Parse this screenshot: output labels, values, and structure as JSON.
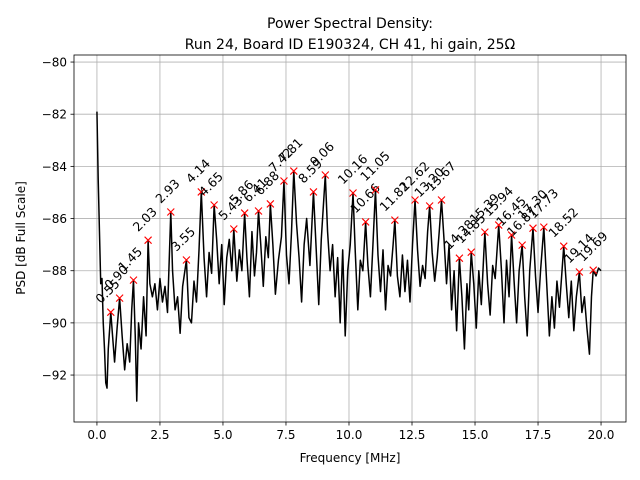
{
  "chart_data": {
    "type": "line",
    "title": [
      "Power Spectral Density:",
      "Run 24, Board ID E190324, CH 41, hi gain, 25Ω"
    ],
    "xlabel": "Frequency [MHz]",
    "ylabel": "PSD [dB Full Scale]",
    "color": "#000000",
    "grid": true,
    "xlim": [
      -0.91,
      20.99
    ],
    "ylim": [
      -93.8,
      -79.73
    ],
    "xticks": [
      {
        "value": 0,
        "label": "0.0"
      },
      2.5,
      {
        "value": 5,
        "label": "5.0"
      },
      7.5,
      {
        "value": 10,
        "label": "10.0"
      },
      12.5,
      {
        "value": 15,
        "label": "15.0"
      },
      17.5,
      {
        "value": 20,
        "label": "20.0"
      }
    ],
    "yticks": [
      {
        "value": -80,
        "label": "−80"
      },
      {
        "value": -82,
        "label": "−82"
      },
      {
        "value": -84,
        "label": "−84"
      },
      {
        "value": -86,
        "label": "−86"
      },
      {
        "value": -88,
        "label": "−88"
      },
      {
        "value": -90,
        "label": "−90"
      },
      {
        "value": -92,
        "label": "−92"
      }
    ],
    "x": [
      0.0,
      0.05,
      0.1,
      0.15,
      0.2,
      0.25,
      0.3,
      0.35,
      0.4,
      0.45,
      0.55,
      0.62,
      0.7,
      0.8,
      0.9,
      1.0,
      1.1,
      1.2,
      1.3,
      1.38,
      1.45,
      1.52,
      1.58,
      1.65,
      1.75,
      1.85,
      1.95,
      2.03,
      2.1,
      2.2,
      2.3,
      2.4,
      2.5,
      2.6,
      2.7,
      2.8,
      2.93,
      3.0,
      3.1,
      3.2,
      3.3,
      3.4,
      3.55,
      3.65,
      3.75,
      3.85,
      3.95,
      4.05,
      4.14,
      4.25,
      4.35,
      4.45,
      4.55,
      4.65,
      4.75,
      4.85,
      4.95,
      5.05,
      5.15,
      5.25,
      5.35,
      5.43,
      5.55,
      5.65,
      5.75,
      5.86,
      5.95,
      6.05,
      6.15,
      6.25,
      6.33,
      6.41,
      6.5,
      6.6,
      6.7,
      6.8,
      6.88,
      6.98,
      7.08,
      7.2,
      7.32,
      7.42,
      7.52,
      7.62,
      7.72,
      7.81,
      7.92,
      8.02,
      8.12,
      8.22,
      8.32,
      8.45,
      8.59,
      8.7,
      8.8,
      8.9,
      9.06,
      9.15,
      9.25,
      9.35,
      9.45,
      9.55,
      9.65,
      9.75,
      9.85,
      9.95,
      10.05,
      10.16,
      10.25,
      10.35,
      10.45,
      10.55,
      10.66,
      10.75,
      10.85,
      10.95,
      11.05,
      11.15,
      11.25,
      11.35,
      11.45,
      11.55,
      11.65,
      11.75,
      11.82,
      11.92,
      12.02,
      12.12,
      12.22,
      12.32,
      12.42,
      12.52,
      12.62,
      12.72,
      12.82,
      12.92,
      13.02,
      13.12,
      13.2,
      13.3,
      13.4,
      13.5,
      13.58,
      13.67,
      13.77,
      13.87,
      13.97,
      14.07,
      14.17,
      14.27,
      14.38,
      14.48,
      14.58,
      14.68,
      14.75,
      14.85,
      14.95,
      15.05,
      15.15,
      15.25,
      15.39,
      15.5,
      15.6,
      15.7,
      15.8,
      15.94,
      16.05,
      16.15,
      16.25,
      16.35,
      16.45,
      16.55,
      16.65,
      16.75,
      16.87,
      16.97,
      17.07,
      17.17,
      17.3,
      17.4,
      17.5,
      17.6,
      17.73,
      17.85,
      17.95,
      18.05,
      18.15,
      18.25,
      18.35,
      18.52,
      18.62,
      18.72,
      18.82,
      18.92,
      19.02,
      19.14,
      19.24,
      19.34,
      19.44,
      19.54,
      19.62,
      19.69,
      19.8,
      19.9,
      20.0
    ],
    "values": [
      -81.9,
      -84.5,
      -86.5,
      -88.5,
      -88.3,
      -90.0,
      -91.0,
      -92.3,
      -92.5,
      -91.0,
      -89.59,
      -90.5,
      -91.5,
      -90.2,
      -89.05,
      -90.5,
      -91.8,
      -90.8,
      -91.5,
      -89.5,
      -88.36,
      -90.5,
      -93.0,
      -90.0,
      -91.0,
      -89.0,
      -90.5,
      -86.83,
      -88.5,
      -89.0,
      -88.5,
      -89.5,
      -88.3,
      -89.2,
      -88.6,
      -89.6,
      -85.75,
      -88.0,
      -89.5,
      -89.0,
      -90.4,
      -88.6,
      -87.59,
      -89.8,
      -90.0,
      -88.4,
      -89.2,
      -87.2,
      -84.98,
      -87.5,
      -89.0,
      -87.3,
      -88.1,
      -85.48,
      -86.8,
      -88.5,
      -87.0,
      -89.3,
      -87.5,
      -86.8,
      -88.0,
      -86.4,
      -88.4,
      -87.2,
      -88.0,
      -85.79,
      -87.5,
      -89.0,
      -86.5,
      -88.2,
      -87.3,
      -85.71,
      -87.0,
      -88.6,
      -86.7,
      -87.5,
      -85.44,
      -87.0,
      -88.9,
      -87.6,
      -86.7,
      -84.56,
      -87.4,
      -88.5,
      -86.5,
      -84.18,
      -86.2,
      -87.5,
      -89.2,
      -87.0,
      -86.0,
      -87.8,
      -84.98,
      -87.2,
      -89.3,
      -86.8,
      -84.33,
      -86.5,
      -88.0,
      -87.0,
      -89.0,
      -87.5,
      -90.0,
      -87.2,
      -90.5,
      -88.0,
      -87.0,
      -85.02,
      -87.3,
      -89.5,
      -87.6,
      -88.0,
      -86.13,
      -87.8,
      -89.0,
      -87.0,
      -84.9,
      -87.4,
      -88.8,
      -87.2,
      -89.5,
      -87.8,
      -88.2,
      -87.0,
      -86.06,
      -88.2,
      -89.0,
      -87.4,
      -88.8,
      -87.6,
      -89.2,
      -87.0,
      -85.29,
      -87.2,
      -88.6,
      -87.8,
      -88.3,
      -86.5,
      -85.52,
      -87.3,
      -88.4,
      -87.5,
      -86.5,
      -85.29,
      -86.8,
      -88.5,
      -87.0,
      -89.5,
      -88.0,
      -90.3,
      -87.52,
      -89.0,
      -91.0,
      -88.5,
      -89.5,
      -87.29,
      -88.5,
      -90.2,
      -88.0,
      -89.3,
      -86.52,
      -88.5,
      -89.7,
      -87.8,
      -88.3,
      -86.25,
      -88.0,
      -90.0,
      -87.6,
      -89.0,
      -86.63,
      -88.4,
      -90.0,
      -88.0,
      -87.02,
      -89.0,
      -90.5,
      -88.0,
      -86.37,
      -88.2,
      -89.6,
      -88.0,
      -86.33,
      -88.6,
      -90.5,
      -89.0,
      -90.2,
      -88.4,
      -89.4,
      -87.06,
      -88.5,
      -89.8,
      -88.4,
      -90.3,
      -89.0,
      -88.05,
      -89.6,
      -89.0,
      -90.2,
      -91.2,
      -89.0,
      -87.98,
      -88.2,
      -87.9,
      -88.0
    ],
    "peaks": {
      "color": "#ff0000",
      "marker": "x",
      "x": [
        0.55,
        0.9,
        1.45,
        2.03,
        2.93,
        3.55,
        4.14,
        4.65,
        5.43,
        5.86,
        6.41,
        6.88,
        7.42,
        7.81,
        8.59,
        9.06,
        10.16,
        10.66,
        11.05,
        11.82,
        12.62,
        13.2,
        13.67,
        14.38,
        14.85,
        15.39,
        15.94,
        16.45,
        16.87,
        17.3,
        17.73,
        18.52,
        19.14,
        19.69
      ],
      "values": [
        -89.59,
        -89.05,
        -88.36,
        -86.83,
        -85.75,
        -87.59,
        -84.98,
        -85.48,
        -86.4,
        -85.79,
        -85.71,
        -85.44,
        -84.56,
        -84.18,
        -84.98,
        -84.33,
        -85.02,
        -86.13,
        -84.9,
        -86.06,
        -85.29,
        -85.52,
        -85.29,
        -87.52,
        -87.29,
        -86.52,
        -86.25,
        -86.63,
        -87.02,
        -86.37,
        -86.33,
        -87.06,
        -88.05,
        -87.98
      ],
      "labels": [
        "0.55",
        "0.90",
        "1.45",
        "2.03",
        "2.93",
        "3.55",
        "4.14",
        "4.65",
        "5.43",
        "5.86",
        "6.41",
        "6.88",
        "7.42",
        "7.81",
        "8.59",
        "9.06",
        "10.16",
        "10.66",
        "11.05",
        "11.82",
        "12.62",
        "13.20",
        "13.67",
        "14.38",
        "14.85",
        "15.39",
        "15.94",
        "16.45",
        "16.87",
        "17.30",
        "17.73",
        "18.52",
        "19.14",
        "19.69"
      ]
    }
  }
}
